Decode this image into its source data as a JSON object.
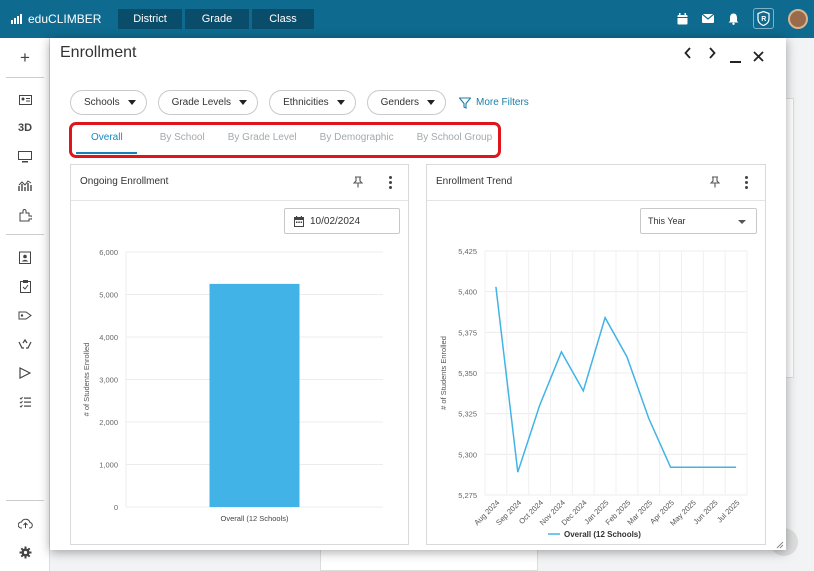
{
  "app": {
    "name": "eduCLIMBER",
    "nav": [
      "District",
      "Grade",
      "Class"
    ]
  },
  "modal": {
    "title": "Enrollment",
    "filters": [
      "Schools",
      "Grade Levels",
      "Ethnicities",
      "Genders"
    ],
    "more_filters": "More Filters",
    "tabs": [
      "Overall",
      "By School",
      "By Grade Level",
      "By Demographic",
      "By School Group"
    ],
    "active_tab": "Overall"
  },
  "panels": {
    "ongoing": {
      "title": "Ongoing Enrollment",
      "date": "10/02/2024"
    },
    "trend": {
      "title": "Enrollment Trend",
      "range": "This Year"
    }
  },
  "colors": {
    "topbar": "#0e6a8f",
    "accent": "#1a8ac1",
    "bar": "#41b3e6",
    "line": "#41b3e6",
    "highlight": "#e0141b"
  },
  "chart_data": [
    {
      "type": "bar",
      "categories": [
        "Overall (12 Schools)"
      ],
      "values": [
        5250
      ],
      "ylabel": "# of Students Enrolled",
      "ylim": [
        0,
        6000
      ],
      "yticks": [
        "0",
        "1,000",
        "2,000",
        "3,000",
        "4,000",
        "5,000",
        "6,000"
      ],
      "grid": true
    },
    {
      "type": "line",
      "x": [
        "Aug 2024",
        "Sep 2024",
        "Oct 2024",
        "Nov 2024",
        "Dec 2024",
        "Jan 2025",
        "Feb 2025",
        "Mar 2025",
        "Apr 2025",
        "May 2025",
        "Jun 2025",
        "Jul 2025"
      ],
      "series": [
        {
          "name": "Overall (12 Schools)",
          "values": [
            5403,
            5289,
            5330,
            5363,
            5339,
            5384,
            5360,
            5322,
            5292,
            5292,
            5292,
            5292
          ]
        }
      ],
      "ylabel": "# of Students Enrolled",
      "ylim": [
        5275,
        5425
      ],
      "yticks": [
        "5,275",
        "5,300",
        "5,325",
        "5,350",
        "5,375",
        "5,400",
        "5,425"
      ],
      "legend": "bottom",
      "grid": true
    }
  ]
}
